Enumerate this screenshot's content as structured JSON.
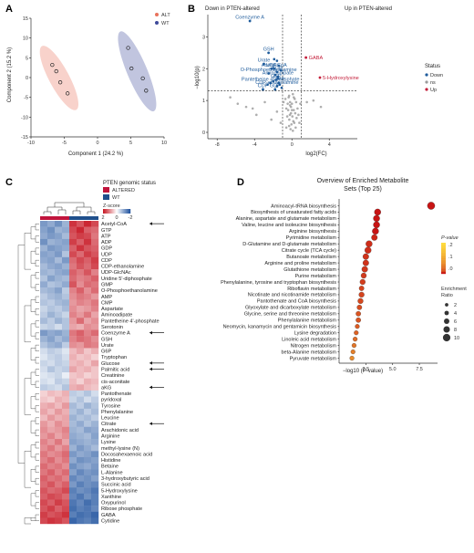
{
  "chart_data": [
    {
      "panel": "A",
      "type": "scatter",
      "xlabel": "Component 1 (24.2 %)",
      "ylabel": "Component 2 (15.2 %)",
      "xlim": [
        -10,
        10
      ],
      "ylim": [
        -15,
        15
      ],
      "xticks": [
        -10,
        -5,
        0,
        5,
        10
      ],
      "yticks": [
        -15,
        -10,
        -5,
        0,
        5,
        10,
        15
      ],
      "legend_position": "top-right",
      "series": [
        {
          "name": "ALT",
          "color": "#e8725c",
          "x": [
            -6.8,
            -6.2,
            -5.6,
            -4.5
          ],
          "y": [
            3.2,
            1.6,
            -1.2,
            -4.0
          ]
        },
        {
          "name": "WT",
          "color": "#3f4a9a",
          "x": [
            4.6,
            5.1,
            6.8,
            7.3
          ],
          "y": [
            7.5,
            2.3,
            -0.2,
            -3.3
          ]
        }
      ]
    },
    {
      "panel": "B",
      "type": "scatter",
      "title_left": "Down in PTEN-altered",
      "title_right": "Up in PTEN-altered",
      "xlabel": "log2(FC)",
      "ylabel": "−log10(p)",
      "xlim": [
        -9,
        7
      ],
      "ylim": [
        -0.2,
        3.7
      ],
      "xticks": [
        -8,
        -4,
        0,
        4
      ],
      "yticks": [
        0,
        1,
        2,
        3
      ],
      "legend_title": "Status",
      "legend": [
        {
          "name": "Down",
          "color": "#1f5c9c"
        },
        {
          "name": "ns",
          "color": "#9a9a9a"
        },
        {
          "name": "Up",
          "color": "#c41e3a"
        }
      ],
      "vlines": [
        -1,
        1
      ],
      "hline": 1.3,
      "labeled_points": [
        {
          "label": "Coenzyme A",
          "x": -4.5,
          "y": 3.5,
          "status": "Down"
        },
        {
          "label": "GSH",
          "x": -2.5,
          "y": 2.5,
          "status": "Down"
        },
        {
          "label": "Urate",
          "x": -3.0,
          "y": 2.15,
          "status": "Down"
        },
        {
          "label": "UDP",
          "x": -2.2,
          "y": 2.0,
          "status": "Down"
        },
        {
          "label": "Acetyl-CoA",
          "x": -1.9,
          "y": 2.0,
          "status": "Down"
        },
        {
          "label": "O-Phosphoethanolamine",
          "x": -2.5,
          "y": 1.85,
          "status": "Down"
        },
        {
          "label": "ADP",
          "x": -1.6,
          "y": 1.9,
          "status": "Down"
        },
        {
          "label": "Aminoadipate",
          "x": -1.5,
          "y": 1.75,
          "status": "Down"
        },
        {
          "label": "GTP",
          "x": -1.7,
          "y": 1.65,
          "status": "Down"
        },
        {
          "label": "Pantetheine 4'-phosphate",
          "x": -2.3,
          "y": 1.55,
          "status": "Down"
        },
        {
          "label": "GMP",
          "x": -1.4,
          "y": 1.55,
          "status": "Down"
        },
        {
          "label": "CDP-ethanolamine",
          "x": -1.6,
          "y": 1.45,
          "status": "Down"
        },
        {
          "label": "CDP",
          "x": -3.1,
          "y": 1.35,
          "status": "Down"
        },
        {
          "label": "GDP",
          "x": -1.8,
          "y": 1.35,
          "status": "Down"
        },
        {
          "label": "GABA",
          "x": 1.5,
          "y": 2.35,
          "status": "Up"
        },
        {
          "label": "5-Hydroxylysine",
          "x": 3.0,
          "y": 1.72,
          "status": "Up"
        }
      ],
      "ns_points": {
        "x": [
          -6.6,
          -5.8,
          -4.9,
          -4.2,
          -3.8,
          -2.9,
          -2.2,
          -1.6,
          -0.9,
          -0.7,
          -0.6,
          -0.5,
          -0.45,
          -0.4,
          -0.35,
          -0.3,
          -0.28,
          -0.22,
          -0.2,
          -0.15,
          -0.1,
          -0.05,
          0,
          0.05,
          0.1,
          0.15,
          0.2,
          0.25,
          0.3,
          0.35,
          0.4,
          0.5,
          0.6,
          0.7,
          0.8,
          0.9,
          1.6,
          2.3,
          3.1,
          -0.3,
          -0.2,
          -0.1,
          0,
          0.1,
          0.2,
          -0.6,
          0.45,
          -1.2
        ],
        "y": [
          1.1,
          0.9,
          0.8,
          0.75,
          0.55,
          0.95,
          0.4,
          0.65,
          0.95,
          1.05,
          0.75,
          0.5,
          0.9,
          0.7,
          1.1,
          0.2,
          0.4,
          0.55,
          0.85,
          0.1,
          0.6,
          0.25,
          0.9,
          0.5,
          0.05,
          0.35,
          0.7,
          0.3,
          1.05,
          0.6,
          0.15,
          0.45,
          0.75,
          0.55,
          0.3,
          0.9,
          0.95,
          1.0,
          0.8,
          1.15,
          0.95,
          0.8,
          0.7,
          1.2,
          1.1,
          0.15,
          0.95,
          0.3
        ]
      },
      "unlabeled_down": {
        "x": [
          -1.3,
          -1.5,
          -1.8,
          -1.2,
          -2.0,
          -1.1,
          -1.4,
          -1.6,
          -2.6,
          -1.9
        ],
        "y": [
          1.5,
          1.7,
          1.8,
          1.95,
          1.6,
          1.4,
          2.1,
          2.25,
          1.5,
          2.3
        ]
      }
    },
    {
      "panel": "C",
      "type": "heatmap",
      "legend_group_title": "PTEN genomic status",
      "groups": [
        {
          "name": "ALTERED",
          "color": "#c0143c"
        },
        {
          "name": "WT",
          "color": "#1f4f8c"
        }
      ],
      "zscore_title": "Z-score",
      "zscore_ticks": [
        "2",
        "0",
        "-2"
      ],
      "zscore_range": [
        -2,
        2
      ],
      "column_groups": [
        "ALTERED",
        "ALTERED",
        "ALTERED",
        "ALTERED",
        "WT",
        "WT",
        "WT",
        "WT"
      ],
      "arrows": [
        "Acetyl-CoA",
        "Coenzyme A",
        "Glucose",
        "Palmitic acid",
        "aKG",
        "Citrate"
      ],
      "rows": [
        "Acetyl-CoA",
        "GTP",
        "ATP",
        "ADP",
        "GDP",
        "UDP",
        "CDP",
        "CDP-ethanolamine",
        "UDP-GlcNAc",
        "Uridine 5'-diphosphate",
        "GMP",
        "O-Phosphoethanolamine",
        "AMP",
        "CMP",
        "Aspartate",
        "Aminoadipate",
        "Pantetheine 4'-phosphate",
        "Serotonin",
        "Coenzyme A",
        "GSH",
        "Urate",
        "G6P",
        "Tryptophan",
        "Glucose",
        "Palmitic acid",
        "Creatinine",
        "cis-aconitate",
        "aKG",
        "Pantothenate",
        "pyridoxal",
        "Tyrosine",
        "Phenylalanine",
        "Leucine",
        "Citrate",
        "Arachidonic acid",
        "Arginine",
        "Lysine",
        "methyl-lysine (N)",
        "Docosahexaenoic acid",
        "Histidine",
        "Betaine",
        "L-Alanine",
        "3-hydroxybutyric acid",
        "Succinic acid",
        "5-Hydroxylysine",
        "Xanthine",
        "Oxypurinol",
        "Ribose phosphate",
        "GABA",
        "Cytidine"
      ],
      "values": [
        [
          -1.2,
          -1.0,
          -1.3,
          -0.9,
          1.8,
          1.5,
          1.9,
          1.6
        ],
        [
          -1.1,
          -1.3,
          -0.9,
          -1.0,
          1.6,
          1.9,
          1.4,
          1.3
        ],
        [
          -1.0,
          -1.2,
          -1.1,
          -0.8,
          1.5,
          1.7,
          1.6,
          1.2
        ],
        [
          -1.3,
          -0.9,
          -1.0,
          -1.1,
          1.7,
          1.4,
          1.8,
          1.3
        ],
        [
          -0.9,
          -1.2,
          -1.1,
          -1.0,
          1.4,
          1.8,
          1.5,
          1.4
        ],
        [
          -1.1,
          -1.0,
          -1.2,
          -0.7,
          1.6,
          1.3,
          1.7,
          1.5
        ],
        [
          -1.0,
          -1.1,
          -0.8,
          -1.2,
          1.3,
          1.6,
          1.4,
          1.7
        ],
        [
          -0.8,
          -1.0,
          -1.1,
          -0.9,
          1.2,
          1.5,
          1.3,
          1.6
        ],
        [
          -0.9,
          -0.8,
          -1.0,
          -1.1,
          1.4,
          1.2,
          1.5,
          1.1
        ],
        [
          -0.7,
          -1.1,
          -0.9,
          -0.8,
          1.3,
          1.1,
          1.2,
          1.4
        ],
        [
          -1.0,
          -0.7,
          -0.8,
          -1.0,
          1.5,
          1.0,
          1.3,
          1.2
        ],
        [
          -0.8,
          -0.9,
          -1.1,
          -0.6,
          1.1,
          1.4,
          1.0,
          1.3
        ],
        [
          -0.6,
          -0.8,
          -0.9,
          -0.7,
          1.0,
          1.2,
          1.1,
          0.9
        ],
        [
          -0.7,
          -0.6,
          -0.8,
          -0.9,
          0.9,
          1.1,
          1.0,
          1.2
        ],
        [
          -0.5,
          -0.7,
          -0.6,
          -0.8,
          1.0,
          0.8,
          0.9,
          1.1
        ],
        [
          -0.6,
          -0.9,
          -0.7,
          -0.5,
          1.1,
          0.9,
          1.2,
          0.8
        ],
        [
          -0.8,
          -0.6,
          -0.9,
          -0.7,
          0.9,
          1.3,
          0.8,
          1.0
        ],
        [
          -0.5,
          -0.6,
          -0.4,
          -0.7,
          0.8,
          0.7,
          1.0,
          0.9
        ],
        [
          -1.2,
          -1.0,
          -1.1,
          -0.9,
          1.2,
          1.4,
          1.1,
          1.3
        ],
        [
          -0.9,
          -1.1,
          -0.8,
          -1.0,
          1.1,
          1.3,
          1.2,
          1.0
        ],
        [
          -0.7,
          -0.9,
          -1.0,
          -0.6,
          1.0,
          0.9,
          1.2,
          1.1
        ],
        [
          -0.4,
          -0.6,
          -0.5,
          -0.3,
          0.6,
          0.8,
          0.5,
          0.7
        ],
        [
          -0.3,
          -0.5,
          -0.6,
          -0.4,
          0.7,
          0.5,
          0.6,
          0.4
        ],
        [
          -0.5,
          -0.4,
          -0.6,
          -0.5,
          0.6,
          0.7,
          0.5,
          0.8
        ],
        [
          -0.4,
          -0.7,
          -0.5,
          -0.6,
          0.8,
          0.6,
          0.7,
          0.5
        ],
        [
          -0.3,
          -0.4,
          -0.5,
          -0.2,
          0.5,
          0.6,
          0.4,
          0.5
        ],
        [
          -0.4,
          -0.3,
          -0.6,
          -0.5,
          0.6,
          0.4,
          0.7,
          0.6
        ],
        [
          -0.6,
          -0.5,
          -0.4,
          -0.7,
          0.7,
          0.8,
          0.6,
          0.5
        ],
        [
          0.4,
          0.6,
          0.5,
          0.7,
          -0.6,
          -0.5,
          -0.7,
          -0.4
        ],
        [
          0.5,
          0.4,
          0.7,
          0.6,
          -0.5,
          -0.7,
          -0.4,
          -0.6
        ],
        [
          0.7,
          0.8,
          0.6,
          0.9,
          -0.8,
          -0.6,
          -0.9,
          -0.7
        ],
        [
          0.8,
          0.6,
          0.9,
          0.7,
          -0.7,
          -0.9,
          -0.6,
          -0.8
        ],
        [
          0.6,
          0.9,
          0.7,
          0.8,
          -0.9,
          -0.7,
          -0.8,
          -0.6
        ],
        [
          0.9,
          0.7,
          1.0,
          0.8,
          -0.8,
          -1.0,
          -0.7,
          -0.9
        ],
        [
          1.0,
          0.8,
          0.9,
          1.1,
          -0.9,
          -0.8,
          -1.1,
          -1.0
        ],
        [
          0.9,
          1.1,
          0.8,
          1.0,
          -1.0,
          -0.9,
          -0.8,
          -1.1
        ],
        [
          1.1,
          0.9,
          1.2,
          0.8,
          -1.1,
          -1.0,
          -0.9,
          -1.0
        ],
        [
          1.0,
          1.2,
          0.9,
          1.1,
          -0.9,
          -1.2,
          -1.0,
          -0.8
        ],
        [
          1.2,
          1.0,
          1.1,
          1.3,
          -1.2,
          -1.0,
          -1.1,
          -1.3
        ],
        [
          1.1,
          1.3,
          1.0,
          1.2,
          -1.0,
          -1.3,
          -1.2,
          -1.1
        ],
        [
          1.3,
          1.1,
          1.2,
          1.0,
          -1.3,
          -1.1,
          -1.0,
          -1.2
        ],
        [
          1.2,
          1.4,
          1.1,
          1.3,
          -1.1,
          -1.4,
          -1.2,
          -1.3
        ],
        [
          1.4,
          1.2,
          1.3,
          1.1,
          -1.4,
          -1.2,
          -1.3,
          -1.1
        ],
        [
          1.3,
          1.5,
          1.2,
          1.4,
          -1.2,
          -1.5,
          -1.3,
          -1.4
        ],
        [
          1.5,
          1.3,
          1.4,
          1.6,
          -1.5,
          -1.3,
          -1.4,
          -1.6
        ],
        [
          1.4,
          1.6,
          1.5,
          1.3,
          -1.4,
          -1.6,
          -1.3,
          -1.5
        ],
        [
          1.6,
          1.4,
          1.7,
          1.5,
          -1.6,
          -1.4,
          -1.7,
          -1.5
        ],
        [
          1.5,
          1.7,
          1.4,
          1.6,
          -1.7,
          -1.5,
          -1.6,
          -1.4
        ],
        [
          1.7,
          1.5,
          1.6,
          1.8,
          -1.5,
          -1.7,
          -1.6,
          -1.8
        ],
        [
          1.6,
          1.8,
          1.7,
          1.5,
          -1.8,
          -1.6,
          -1.5,
          -1.7
        ]
      ]
    },
    {
      "panel": "D",
      "type": "scatter",
      "title": "Overview of Enriched Metabolite Sets (Top 25)",
      "xlabel": "−log10 (P-value)",
      "xlim": [
        0,
        9.2
      ],
      "xticks": [
        2.5,
        5.0,
        7.5
      ],
      "pvalue_legend_title": "P-value",
      "pvalue_ticks": [
        ".2",
        ".1",
        ".0"
      ],
      "enrichment_legend_title": "Enrichment Ratio",
      "enrichment_sizes": [
        2,
        4,
        6,
        8,
        10
      ],
      "categories": [
        "Aminoacyl-tRNA biosynthesis",
        "Biosynthesis of unsaturated fatty acids",
        "Alanine, aspartate and glutamate metabolism",
        "Valine, leucine and isoleucine biosynthesis",
        "Arginine biosynthesis",
        "Pyrimidine metabolism",
        "D-Glutamine and D-glutamate metabolism",
        "Citrate cycle (TCA cycle)",
        "Butanoate metabolism",
        "Arginine and proline metabolism",
        "Glutathione metabolism",
        "Purine metabolism",
        "Phenylalanine, tyrosine and tryptophan biosynthesis",
        "Riboflavin metabolism",
        "Nicotinate and nicotinamide metabolism",
        "Pantothenate and CoA biosynthesis",
        "Glyoxylate and dicarboxylate metabolism",
        "Glycine, serine and threonine metabolism",
        "Phenylalanine metabolism",
        "Neomycin, kanamycin and gentamicin biosynthesis",
        "Lysine degradation",
        "Linoleic acid metabolism",
        "Nitrogen metabolism",
        "beta-Alanine metabolism",
        "Pyruvate metabolism"
      ],
      "x": [
        8.6,
        3.6,
        3.5,
        3.5,
        3.4,
        3.3,
        2.8,
        2.7,
        2.5,
        2.5,
        2.4,
        2.3,
        2.2,
        2.1,
        2.1,
        2.0,
        1.9,
        1.8,
        1.8,
        1.7,
        1.6,
        1.5,
        1.4,
        1.3,
        1.2
      ],
      "p": [
        0.0,
        0.0,
        0.0,
        0.0,
        0.0,
        0.001,
        0.002,
        0.002,
        0.003,
        0.003,
        0.004,
        0.005,
        0.006,
        0.008,
        0.008,
        0.01,
        0.012,
        0.016,
        0.016,
        0.02,
        0.025,
        0.032,
        0.04,
        0.05,
        0.063
      ],
      "enrichment": [
        10,
        8,
        8,
        8,
        8,
        7,
        8,
        8,
        7,
        7,
        7,
        6,
        6,
        5,
        6,
        6,
        5,
        5,
        5,
        4,
        4,
        4,
        4,
        4,
        4
      ]
    }
  ]
}
